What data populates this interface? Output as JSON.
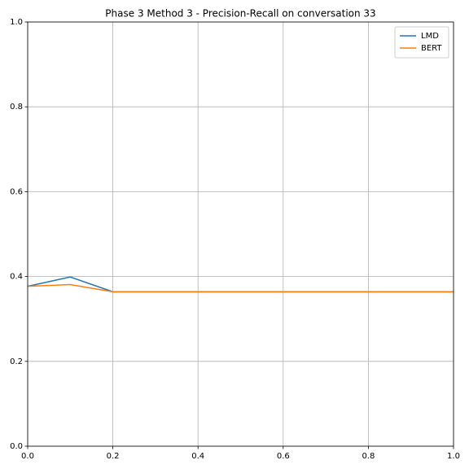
{
  "chart_data": {
    "type": "line",
    "title": "Phase 3 Method 3 - Precision-Recall on conversation 33",
    "x": [
      0,
      0.1,
      0.2,
      0.3,
      0.4,
      0.5,
      0.6,
      0.7,
      0.8,
      0.9,
      1
    ],
    "series": [
      {
        "name": "LMD",
        "color": "#1f77b4",
        "values": [
          0.377,
          0.399,
          0.364,
          0.364,
          0.364,
          0.364,
          0.364,
          0.364,
          0.364,
          0.364,
          0.364
        ]
      },
      {
        "name": "BERT",
        "color": "#ff7f0e",
        "values": [
          0.377,
          0.381,
          0.364,
          0.364,
          0.364,
          0.364,
          0.364,
          0.364,
          0.364,
          0.364,
          0.364
        ]
      }
    ],
    "xlim": [
      0,
      1
    ],
    "ylim": [
      0,
      1
    ],
    "xticks": [
      {
        "value": 0,
        "label": "0.0"
      },
      0.2,
      0.4,
      0.6,
      0.8,
      {
        "value": 1,
        "label": "1.0"
      }
    ],
    "yticks": [
      {
        "value": 0,
        "label": "0.0"
      },
      0.2,
      0.4,
      0.6,
      0.8,
      {
        "value": 1,
        "label": "1.0"
      }
    ],
    "grid": true,
    "legend": "upper right"
  }
}
